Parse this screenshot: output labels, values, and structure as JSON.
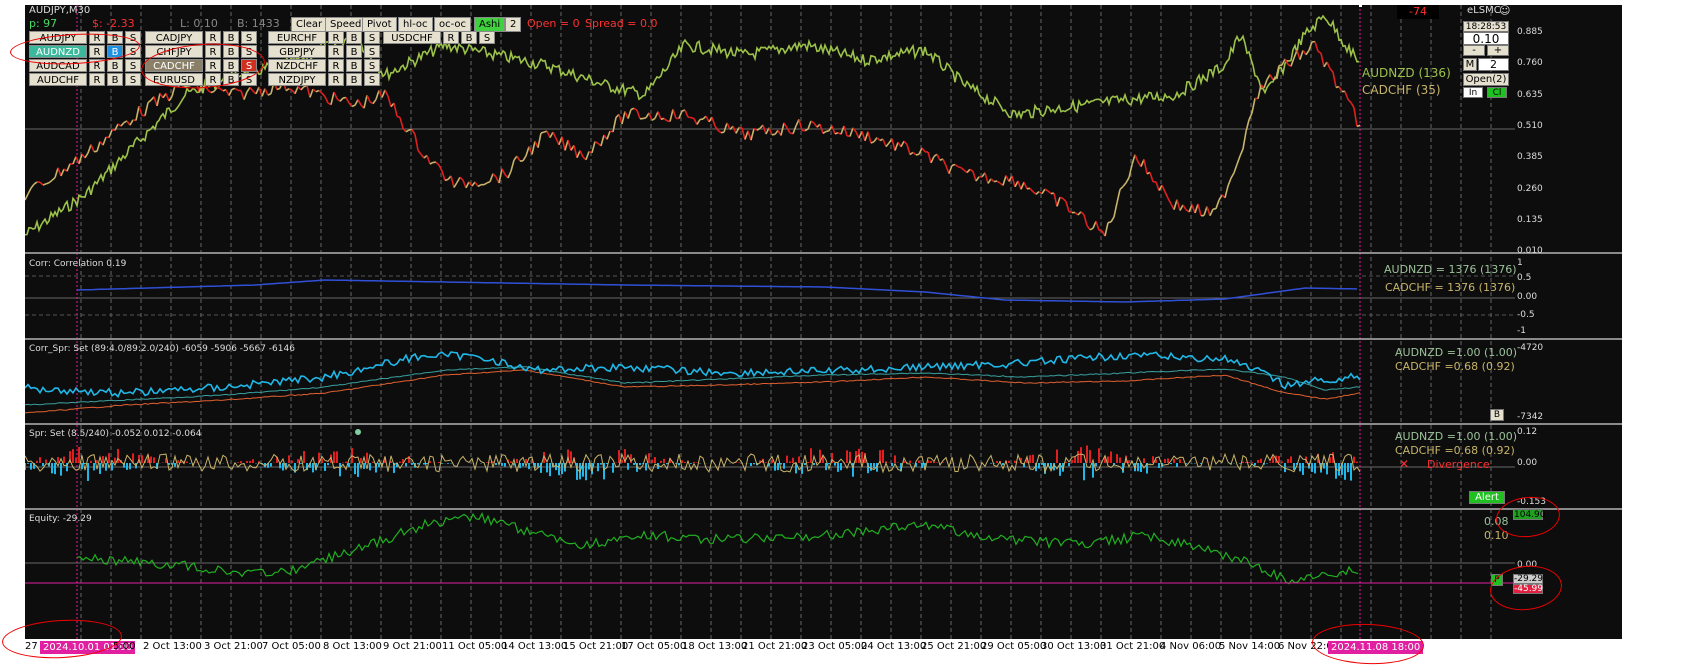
{
  "chart_title": "AUDJPY,M30",
  "status": {
    "p": "p: 97",
    "dollar": "$: -2.33",
    "l": "L: 0.10",
    "b": "B: 1433"
  },
  "toolbar": [
    {
      "label": "Clear",
      "name": "clear-button"
    },
    {
      "label": "Speed",
      "name": "speed-button"
    },
    {
      "label": "Pivot",
      "name": "pivot-button"
    },
    {
      "label": "hl-oc",
      "name": "hl-oc-button"
    },
    {
      "label": "oc-oc",
      "name": "oc-oc-button"
    },
    {
      "label": "Ashi",
      "name": "ashi-button"
    },
    {
      "label": "2",
      "name": "ashi-value-field"
    }
  ],
  "open_info": "Open = 0",
  "spread_info": "Spread = 0.0",
  "symbols": [
    [
      "AUDJPY",
      "CADJPY",
      "EURCHF",
      "USDCHF"
    ],
    [
      "AUDNZD",
      "CHFJPY",
      "GBPJPY",
      ""
    ],
    [
      "AUDCAD",
      "CADCHF",
      "NZDCHF",
      ""
    ],
    [
      "AUDCHF",
      "EURUSD",
      "NZDJPY",
      ""
    ]
  ],
  "rbs": {
    "r": "R",
    "b": "B",
    "s": "S"
  },
  "right_panel": {
    "counter": "-74",
    "logo": "eLSMC",
    "clock": "18:28:53",
    "lot": "0.10",
    "minus": "-",
    "plus": "+",
    "m_label": "M",
    "m_value": "2",
    "open": "Open(2)",
    "in": "In",
    "cl": "Cl"
  },
  "main_pane": {
    "legend1": "AUDNZD (136)",
    "legend2": "CADCHF (35)",
    "y_ticks": [
      "0.885",
      "0.760",
      "0.635",
      "0.510",
      "0.385",
      "0.260",
      "0.135",
      "0.010"
    ]
  },
  "corr_pane": {
    "title": "Corr: Correlation 0.19",
    "legend1": "AUDNZD = 1376 (1376)",
    "legend2": "CADCHF = 1376 (1376)",
    "y_ticks": [
      "1",
      "0.5",
      "0.00",
      "-0.5",
      "-1"
    ]
  },
  "corrspr_pane": {
    "title": "Corr_Spr: Set (89:4.0/89:2.0/240) -6059 -5906 -5667 -6146",
    "legend1": "AUDNZD =1.00 (1.00)",
    "legend2": "CADCHF =0.68 (0.92)",
    "y_top": "-4720",
    "y_bottom": "-7342",
    "b_label": "B"
  },
  "spr_pane": {
    "title": "Spr: Set (8.5/240) -0.052 0.012 -0.064",
    "legend1": "AUDNZD =1.00 (1.00)",
    "legend2": "CADCHF =0.68 (0.92)",
    "divergence": "Divergence",
    "alert": "Alert",
    "y_top": "0.12",
    "y_mid": "0.00",
    "y_bottom": "-0.153",
    "value_box": "104.90"
  },
  "equity_pane": {
    "title": "Equity: -29.29",
    "v1": "0.08",
    "v2": "0.10",
    "y_mid": "0.00",
    "box1": "-29.29",
    "box2": "-45.99",
    "p_label": "P"
  },
  "x_labels": [
    "27 S",
    "2 Oct 13:00",
    "3 Oct 21:00",
    "7 Oct 05:00",
    "8 Oct 13:00",
    "9 Oct 21:00",
    "11 Oct 05:00",
    "14 Oct 13:00",
    "15 Oct 21:00",
    "17 Oct 05:00",
    "18 Oct 13:00",
    "21 Oct 21:00",
    "23 Oct 05:00",
    "24 Oct 13:00",
    "25 Oct 21:00",
    "29 Oct 05:00",
    "30 Oct 13:00",
    "31 Oct 21:00",
    "4 Nov 06:00",
    "5 Nov 14:00",
    "6 Nov 22:00"
  ],
  "x_cursor_start": "2024.10.01 01:00",
  "x_cursor_end": "2024.11.08 18:00",
  "x_extra": "5:00",
  "colors": {
    "bg": "#0d0d0d",
    "audnzd": "#9cc24a",
    "cadchf": "#c8b46a",
    "red": "#e02020",
    "cyan": "#20b8e8",
    "corr_line": "#3050d8",
    "equity": "#20b020",
    "accent_red": "#ff2020"
  }
}
